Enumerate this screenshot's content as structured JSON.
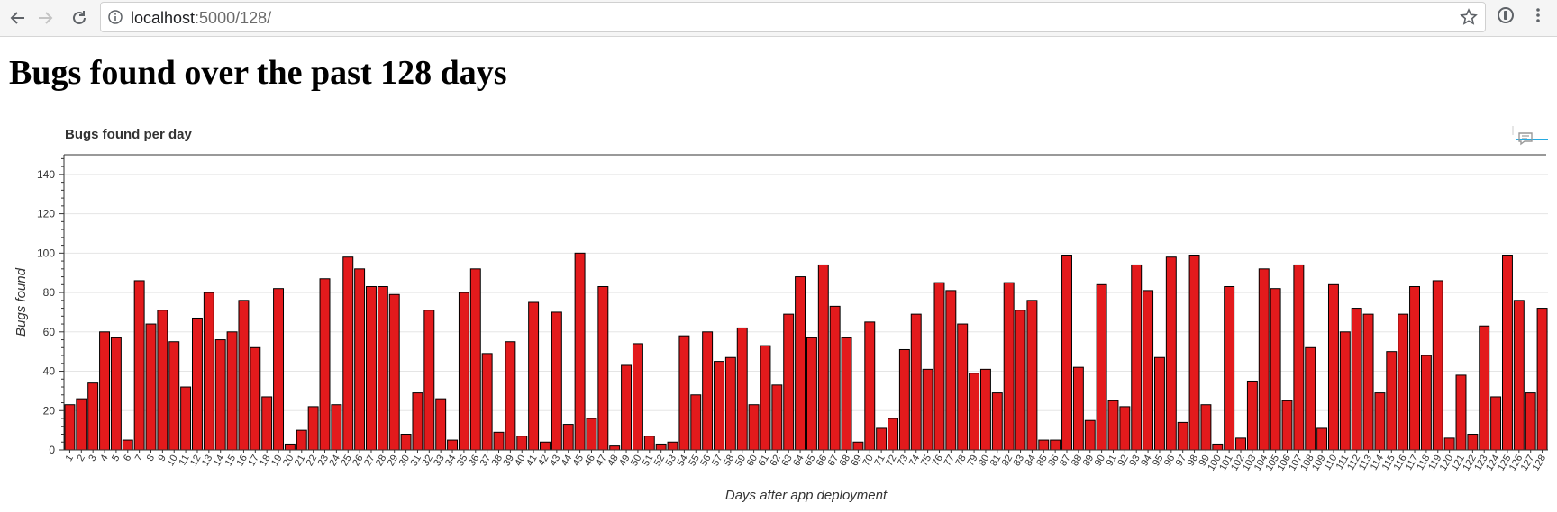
{
  "browser": {
    "url_host": "localhost",
    "url_path": ":5000/128/",
    "icons": [
      "back-arrow-icon",
      "forward-arrow-icon",
      "reload-icon",
      "info-icon",
      "star-icon",
      "extension-icon",
      "menu-icon"
    ]
  },
  "page": {
    "heading": "Bugs found over the past 128 days"
  },
  "chart_data": {
    "type": "bar",
    "title": "Bugs found per day",
    "xlabel": "Days after app deployment",
    "ylabel": "Bugs found",
    "ylim": [
      0,
      150
    ],
    "yticks": [
      0,
      20,
      40,
      60,
      80,
      100,
      120,
      140
    ],
    "grid": "horizontal",
    "bar_color": "#e31a1c",
    "bar_outline": "#000000",
    "categories": [
      "1",
      "2",
      "3",
      "4",
      "5",
      "6",
      "7",
      "8",
      "9",
      "10",
      "11",
      "12",
      "13",
      "14",
      "15",
      "16",
      "17",
      "18",
      "19",
      "20",
      "21",
      "22",
      "23",
      "24",
      "25",
      "26",
      "27",
      "28",
      "29",
      "30",
      "31",
      "32",
      "33",
      "34",
      "35",
      "36",
      "37",
      "38",
      "39",
      "40",
      "41",
      "42",
      "43",
      "44",
      "45",
      "46",
      "47",
      "48",
      "49",
      "50",
      "51",
      "52",
      "53",
      "54",
      "55",
      "56",
      "57",
      "58",
      "59",
      "60",
      "61",
      "62",
      "63",
      "64",
      "65",
      "66",
      "67",
      "68",
      "69",
      "70",
      "71",
      "72",
      "73",
      "74",
      "75",
      "76",
      "77",
      "78",
      "79",
      "80",
      "81",
      "82",
      "83",
      "84",
      "85",
      "86",
      "87",
      "88",
      "89",
      "90",
      "91",
      "92",
      "93",
      "94",
      "95",
      "96",
      "97",
      "98",
      "99",
      "100",
      "101",
      "102",
      "103",
      "104",
      "105",
      "106",
      "107",
      "108",
      "109",
      "110",
      "111",
      "112",
      "113",
      "114",
      "115",
      "116",
      "117",
      "118",
      "119",
      "120",
      "121",
      "122",
      "123",
      "124",
      "125",
      "126",
      "127",
      "128"
    ],
    "values": [
      23,
      26,
      34,
      60,
      57,
      5,
      86,
      64,
      71,
      55,
      32,
      67,
      80,
      56,
      60,
      76,
      52,
      27,
      82,
      3,
      10,
      22,
      87,
      23,
      98,
      92,
      83,
      83,
      79,
      8,
      29,
      71,
      26,
      5,
      80,
      92,
      49,
      9,
      55,
      7,
      75,
      4,
      70,
      13,
      100,
      16,
      83,
      2,
      43,
      54,
      7,
      3,
      4,
      58,
      28,
      60,
      45,
      47,
      62,
      23,
      53,
      33,
      69,
      88,
      57,
      94,
      73,
      57,
      4,
      65,
      11,
      16,
      51,
      69,
      41,
      85,
      81,
      64,
      39,
      41,
      29,
      85,
      71,
      76,
      5,
      5,
      99,
      42,
      15,
      84,
      25,
      22,
      94,
      81,
      47,
      98,
      14,
      99,
      23,
      3,
      83,
      6,
      35,
      92,
      82,
      25,
      94,
      52,
      11,
      84,
      60,
      72,
      69,
      29,
      50,
      69,
      83,
      48,
      86,
      6,
      38,
      8,
      63,
      27,
      99,
      76,
      29,
      72
    ]
  }
}
